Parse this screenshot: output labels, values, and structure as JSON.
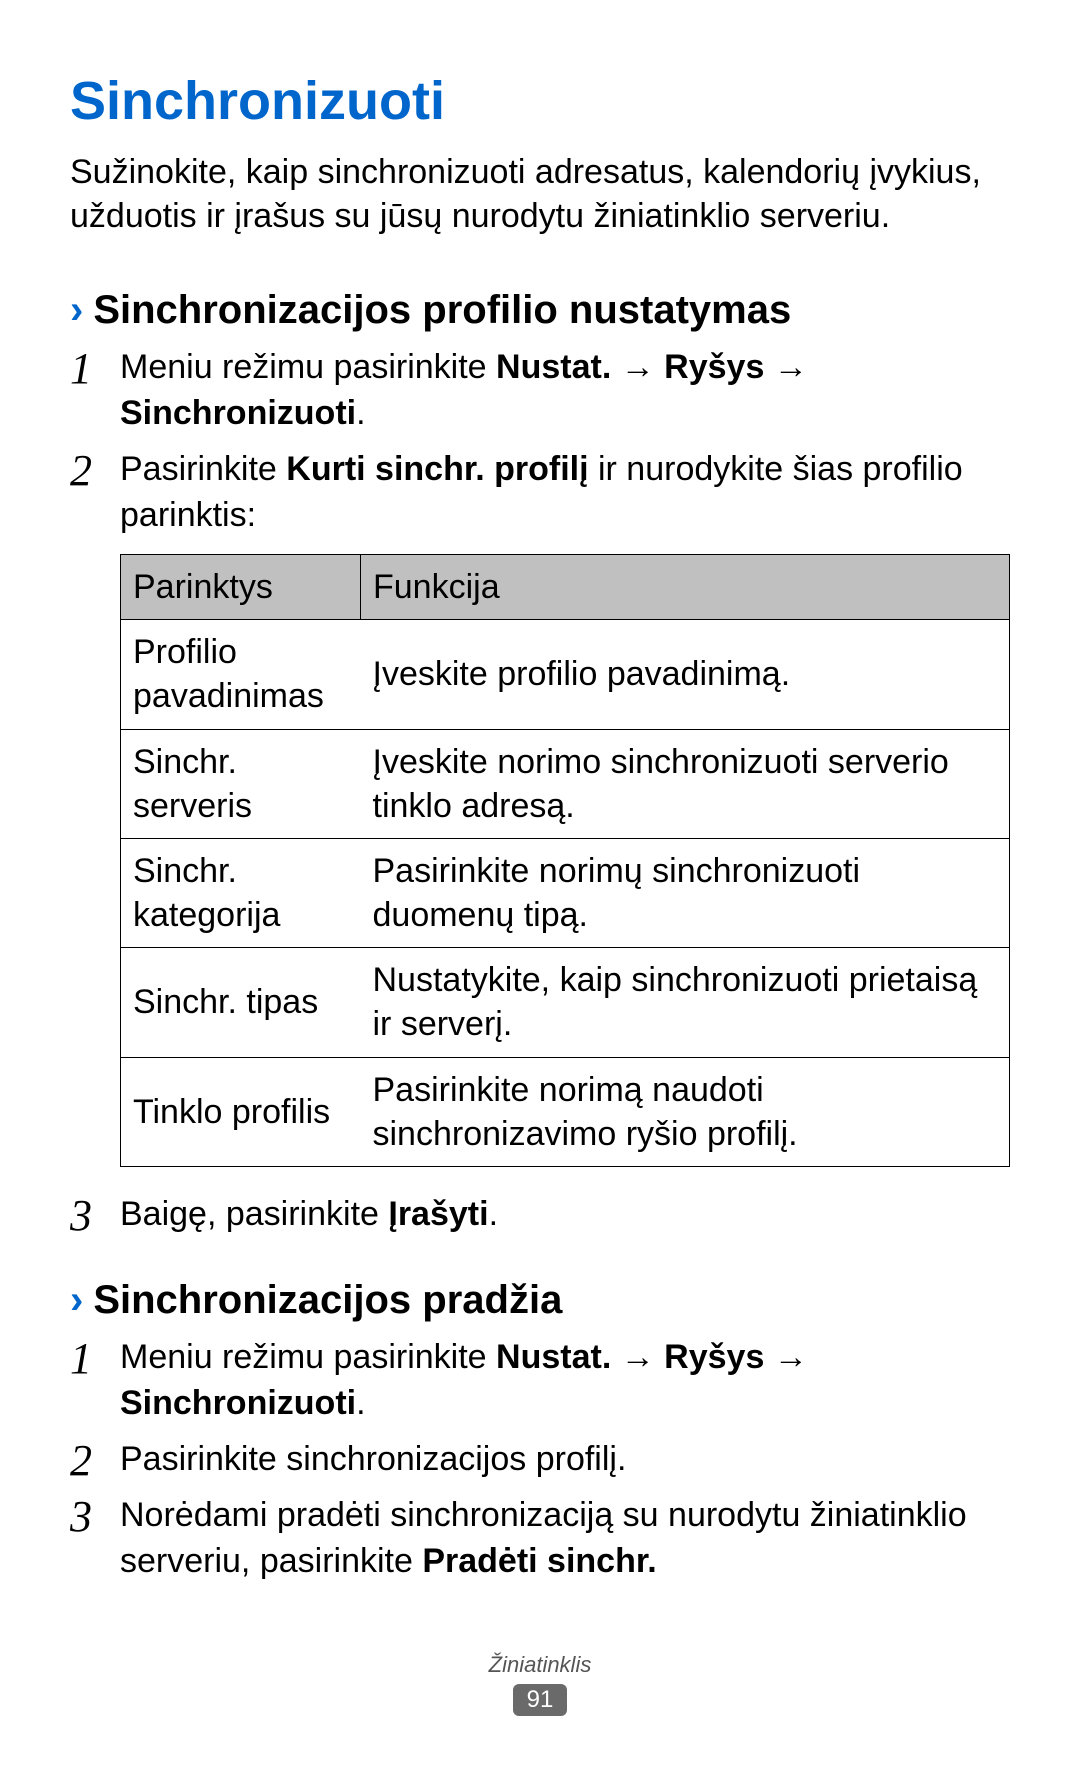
{
  "title": "Sinchronizuoti",
  "intro": "Sužinokite, kaip sinchronizuoti adresatus, kalendorių įvykius, užduotis ir įrašus su jūsų nurodytu žiniatinklio serveriu.",
  "section1": {
    "heading": "Sinchronizacijos profilio nustatymas",
    "step1_pre": "Meniu režimu pasirinkite ",
    "step1_b1": "Nustat.",
    "step1_arr1": " → ",
    "step1_b2": "Ryšys",
    "step1_arr2": " → ",
    "step1_b3": "Sinchronizuoti",
    "step1_post": ".",
    "step2_pre": "Pasirinkite ",
    "step2_b": "Kurti sinchr. profilį",
    "step2_post": " ir nurodykite šias profilio parinktis:",
    "table": {
      "h1": "Parinktys",
      "h2": "Funkcija",
      "rows": [
        {
          "opt": "Profilio pavadinimas",
          "fn": "Įveskite profilio pavadinimą."
        },
        {
          "opt": "Sinchr. serveris",
          "fn": "Įveskite norimo sinchronizuoti serverio tinklo adresą."
        },
        {
          "opt": "Sinchr. kategorija",
          "fn": "Pasirinkite norimų sinchronizuoti duomenų tipą."
        },
        {
          "opt": "Sinchr. tipas",
          "fn": "Nustatykite, kaip sinchronizuoti prietaisą ir serverį."
        },
        {
          "opt": "Tinklo profilis",
          "fn": "Pasirinkite norimą naudoti sinchronizavimo ryšio profilį."
        }
      ]
    },
    "step3_pre": "Baigę, pasirinkite ",
    "step3_b": "Įrašyti",
    "step3_post": "."
  },
  "section2": {
    "heading": "Sinchronizacijos pradžia",
    "step1_pre": "Meniu režimu pasirinkite ",
    "step1_b1": "Nustat.",
    "step1_arr1": " → ",
    "step1_b2": "Ryšys",
    "step1_arr2": " → ",
    "step1_b3": "Sinchronizuoti",
    "step1_post": ".",
    "step2": "Pasirinkite sinchronizacijos profilį.",
    "step3_pre": "Norėdami pradėti sinchronizaciją su nurodytu žiniatinklio serveriu, pasirinkite ",
    "step3_b": "Pradėti sinchr."
  },
  "footer": {
    "category": "Žiniatinklis",
    "page": "91"
  },
  "nums": {
    "n1": "1",
    "n2": "2",
    "n3": "3"
  },
  "chevron": "›"
}
